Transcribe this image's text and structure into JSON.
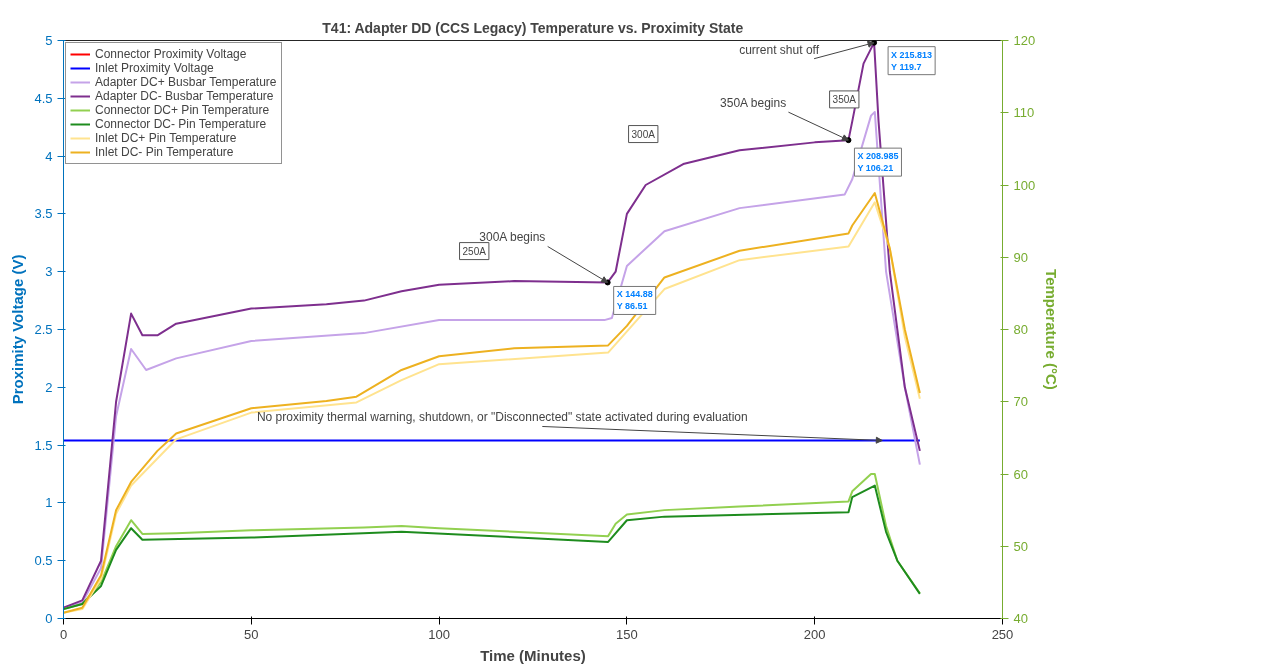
{
  "chart_data": {
    "type": "line",
    "title": "T41: Adapter DD (CCS Legacy) Temperature vs. Proximity State",
    "xlabel": "Time (Minutes)",
    "ylabel": "Proximity Voltage (V)",
    "y2label": "Temperature (°C)",
    "xlim": [
      0,
      250
    ],
    "xticks": [
      0,
      50,
      100,
      150,
      200,
      250
    ],
    "ylim": [
      0,
      5
    ],
    "yticks": [
      0,
      0.5,
      1,
      1.5,
      2,
      2.5,
      3,
      3.5,
      4,
      4.5,
      5
    ],
    "y2lim": [
      40,
      120
    ],
    "y2ticks": [
      40,
      50,
      60,
      70,
      80,
      90,
      100,
      110,
      120
    ],
    "legend": "top left",
    "series": [
      {
        "name": "Connector Proximity Voltage",
        "color": "#ff0000",
        "values": [
          null,
          null
        ]
      },
      {
        "name": "Inlet Proximity Voltage",
        "color": "#0000ff",
        "x": [
          0,
          50,
          100,
          150,
          200,
          228
        ],
        "values": [
          1.54,
          1.54,
          1.54,
          1.54,
          1.54,
          1.54
        ]
      },
      {
        "name": "Adapter DC+ Busbar Temperature",
        "color": "#c5a3e8",
        "axis": "y2",
        "x": [
          0,
          5,
          10,
          14,
          18,
          22,
          30,
          50,
          80,
          100,
          144,
          146,
          150,
          160,
          180,
          208,
          210,
          215,
          216,
          219,
          224,
          228
        ],
        "values": [
          41.5,
          42.2,
          47,
          68,
          77.3,
          74.4,
          76,
          78.4,
          79.5,
          81.3,
          81.3,
          81.6,
          88.8,
          93.6,
          96.8,
          98.7,
          100.8,
          109.6,
          110.1,
          88,
          72,
          61.3
        ]
      },
      {
        "name": "Adapter DC- Busbar Temperature",
        "color": "#7e2f8e",
        "axis": "y2",
        "x": [
          0,
          5,
          10,
          14,
          18,
          21,
          25,
          30,
          50,
          70,
          80,
          90,
          100,
          120,
          144.88,
          147,
          150,
          155,
          165,
          180,
          200,
          208.985,
          210,
          213,
          215.813,
          217,
          220,
          224,
          228
        ],
        "values": [
          41.5,
          42.5,
          48,
          70,
          82.2,
          79.2,
          79.2,
          80.8,
          82.9,
          83.5,
          84,
          85.3,
          86.2,
          86.7,
          86.51,
          88,
          96,
          100,
          102.9,
          104.8,
          105.9,
          106.21,
          108.8,
          116.8,
          119.7,
          108.8,
          88,
          72,
          63.2
        ]
      },
      {
        "name": "Connector DC+ Pin Temperature",
        "color": "#92d050",
        "axis": "y2",
        "x": [
          0,
          5,
          10,
          14,
          18,
          21,
          30,
          50,
          80,
          90,
          100,
          145,
          147,
          150,
          160,
          180,
          209,
          210,
          215,
          216,
          219,
          222,
          228
        ],
        "values": [
          41.3,
          42,
          45,
          50,
          53.6,
          51.7,
          51.8,
          52.2,
          52.6,
          52.8,
          52.5,
          51.4,
          53.1,
          54.4,
          55,
          55.5,
          56.2,
          57.6,
          60,
          60,
          52.8,
          48,
          43.5
        ]
      },
      {
        "name": "Connector DC- Pin Temperature",
        "color": "#1e8c1e",
        "axis": "y2",
        "x": [
          0,
          5,
          10,
          14,
          18,
          21,
          50,
          90,
          145,
          150,
          160,
          209,
          210,
          216,
          219,
          222,
          228
        ],
        "values": [
          41.3,
          42,
          44.5,
          49.5,
          52.5,
          50.9,
          51.2,
          52,
          50.6,
          53.6,
          54.1,
          54.7,
          56.8,
          58.4,
          52,
          48,
          43.4
        ]
      },
      {
        "name": "Inlet DC+ Pin Temperature",
        "color": "#ffe38f",
        "axis": "y2",
        "x": [
          0,
          5,
          10,
          14,
          18,
          30,
          50,
          78,
          90,
          100,
          145,
          160,
          180,
          209,
          216,
          220,
          224,
          228
        ],
        "values": [
          40.8,
          41.3,
          45.5,
          54.5,
          58.4,
          64.8,
          68.5,
          69.9,
          73,
          75.2,
          76.8,
          85.6,
          89.6,
          91.5,
          97.6,
          91.2,
          79,
          70.4
        ]
      },
      {
        "name": "Inlet DC- Pin Temperature",
        "color": "#edb120",
        "axis": "y2",
        "x": [
          0,
          5,
          10,
          14,
          18,
          25,
          30,
          50,
          70,
          78,
          90,
          100,
          120,
          145,
          150,
          160,
          180,
          209,
          210,
          216,
          220,
          224,
          228
        ],
        "values": [
          40.8,
          41.5,
          46,
          55,
          58.9,
          63.2,
          65.6,
          69.1,
          70.1,
          70.7,
          74.4,
          76.3,
          77.4,
          77.8,
          80.5,
          87.2,
          90.9,
          93.3,
          94.4,
          98.9,
          91.2,
          80,
          71.2
        ]
      }
    ],
    "annotations": [
      "250A",
      "300A",
      "350A",
      {
        "text": "300A begins",
        "x": 144.88,
        "y": 2.907
      },
      "X 144.88\nY 86.51",
      {
        "text": "350A begins",
        "x": 208.985,
        "y": 4.138
      },
      "X 208.985\nY 106.21",
      {
        "text": "current shut off",
        "x": 215.813,
        "y": 4.981
      },
      "X 215.813\nY 119.7",
      {
        "text": "No proximity thermal warning, shutdown, or \"Disconnected\" state activated during evaluation",
        "x": 218,
        "y": 1.54
      }
    ]
  }
}
